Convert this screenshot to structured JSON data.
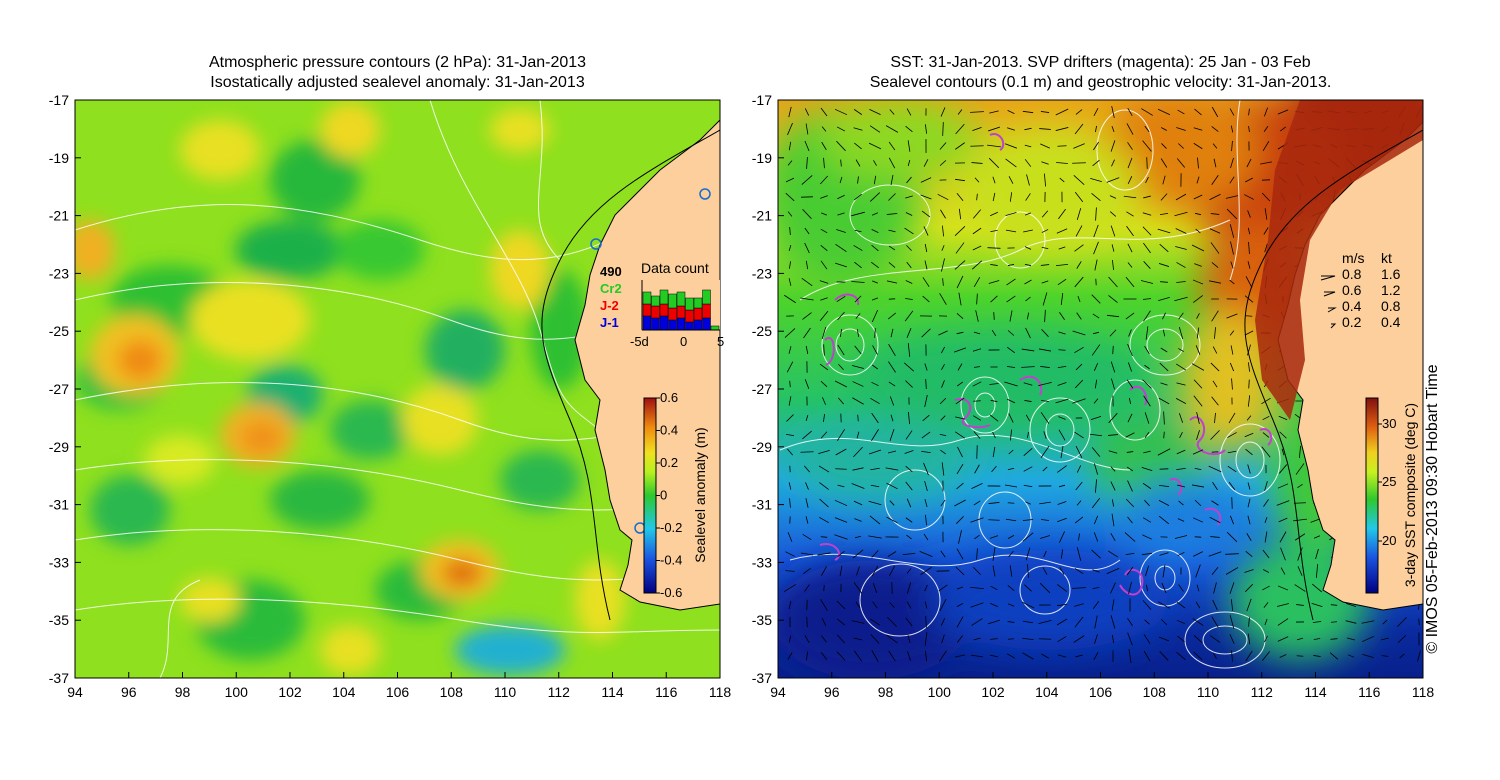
{
  "left_panel": {
    "title_line1": "Atmospheric pressure contours (2 hPa): 31-Jan-2013",
    "title_line2": "Isostatically adjusted sealevel anomaly: 31-Jan-2013",
    "colorbar": {
      "label": "Sealevel anomaly (m)",
      "ticks": [
        "0.6",
        "0.4",
        "0.2",
        "0",
        "-0.2",
        "-0.4",
        "-0.6"
      ]
    },
    "data_count": {
      "title": "Data count",
      "legend": [
        {
          "label": "490",
          "color": "#000000"
        },
        {
          "label": "Cr2",
          "color": "#22cc22"
        },
        {
          "label": "J-2",
          "color": "#ee0000"
        },
        {
          "label": "J-1",
          "color": "#0000dd"
        }
      ],
      "xticks": [
        "-5d",
        "0",
        "5"
      ]
    }
  },
  "right_panel": {
    "title_line1": "SST: 31-Jan-2013. SVP drifters (magenta): 25 Jan - 03 Feb",
    "title_line2": "Sealevel contours (0.1 m) and geostrophic velocity: 31-Jan-2013.",
    "colorbar": {
      "label": "3-day SST composite (deg C)",
      "ticks": [
        "30",
        "25",
        "20"
      ]
    },
    "velocity_legend": {
      "header_ms": "m/s",
      "header_kt": "kt",
      "rows": [
        {
          "ms": "0.8",
          "kt": "1.6"
        },
        {
          "ms": "0.6",
          "kt": "1.2"
        },
        {
          "ms": "0.4",
          "kt": "0.8"
        },
        {
          "ms": "0.2",
          "kt": "0.4"
        }
      ]
    }
  },
  "axes": {
    "x_ticks": [
      "94",
      "96",
      "98",
      "100",
      "102",
      "104",
      "106",
      "108",
      "110",
      "112",
      "114",
      "116",
      "118"
    ],
    "y_ticks": [
      "-17",
      "-19",
      "-21",
      "-23",
      "-25",
      "-27",
      "-29",
      "-31",
      "-33",
      "-35",
      "-37"
    ]
  },
  "credit": "© IMOS 05-Feb-2013 09:30 Hobart Time"
}
